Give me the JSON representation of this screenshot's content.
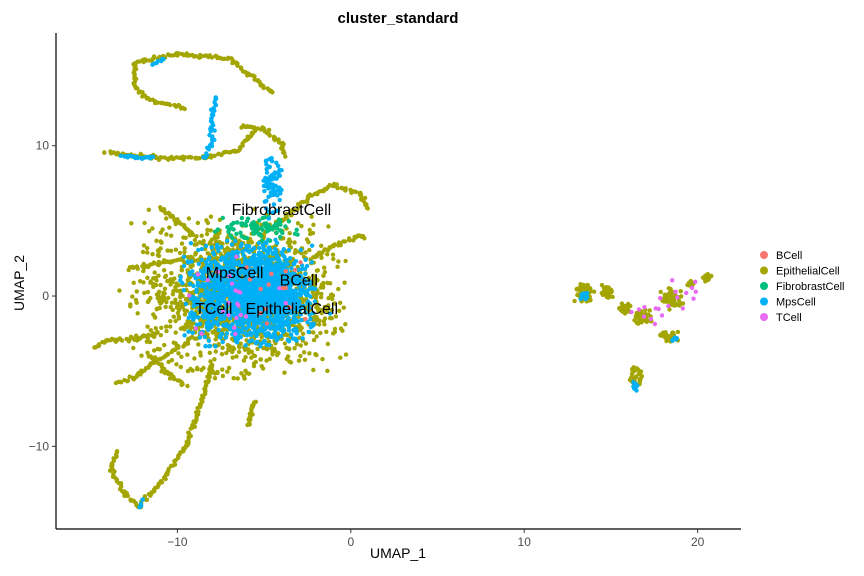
{
  "chart_data": {
    "type": "scatter",
    "title": "cluster_standard",
    "xlabel": "UMAP_1",
    "ylabel": "UMAP_2",
    "xlim": [
      -17,
      22.5
    ],
    "ylim": [
      -15.5,
      17.5
    ],
    "x_ticks": [
      -10,
      0,
      10,
      20
    ],
    "y_ticks": [
      -10,
      0,
      10
    ],
    "x_tick_labels": [
      "−10",
      "0",
      "10",
      "20"
    ],
    "y_tick_labels": [
      "−10",
      "0",
      "10"
    ],
    "grid": false,
    "legend_position": "right",
    "series": [
      {
        "name": "BCell",
        "color": "#F8766D"
      },
      {
        "name": "EpithelialCell",
        "color": "#A3A500"
      },
      {
        "name": "FibrobrastCell",
        "color": "#00BF7D"
      },
      {
        "name": "MpsCell",
        "color": "#00B0F6"
      },
      {
        "name": "TCell",
        "color": "#E76BF3"
      }
    ],
    "cluster_labels": [
      {
        "text": "FibrobrastCell",
        "x": -4,
        "y": 5.4
      },
      {
        "text": "MpsCell",
        "x": -6.7,
        "y": 1.2
      },
      {
        "text": "BCell",
        "x": -3,
        "y": 0.7
      },
      {
        "text": "TCell",
        "x": -7.9,
        "y": -1.2
      },
      {
        "text": "EpithelialCell",
        "x": -3.4,
        "y": -1.2
      }
    ],
    "point_clouds": [
      {
        "series": "EpithelialCell",
        "cx": -6.5,
        "cy": 0,
        "sx": 2.6,
        "sy": 2.3,
        "n": 1600
      },
      {
        "series": "MpsCell",
        "cx": -6.0,
        "cy": 0.2,
        "sx": 1.6,
        "sy": 1.5,
        "n": 1300
      },
      {
        "series": "MpsCell",
        "cx": -4.2,
        "cy": 0.0,
        "sx": 0.9,
        "sy": 1.3,
        "n": 400
      },
      {
        "series": "FibrobrastCell",
        "cx": -5.6,
        "cy": 4.5,
        "sx": 1.2,
        "sy": 0.35,
        "n": 90
      },
      {
        "series": "MpsCell",
        "cx": -4.6,
        "cy": 7.3,
        "sx": 0.3,
        "sy": 0.9,
        "n": 80
      },
      {
        "series": "TCell",
        "cx": -6.5,
        "cy": -0.3,
        "sx": 1.3,
        "sy": 1.3,
        "n": 25
      },
      {
        "series": "BCell",
        "cx": -4.5,
        "cy": 0.5,
        "sx": 1.0,
        "sy": 1.0,
        "n": 15
      },
      {
        "series": "EpithelialCell",
        "cx": 13.5,
        "cy": 0.2,
        "sx": 0.25,
        "sy": 0.3,
        "n": 90
      },
      {
        "series": "EpithelialCell",
        "cx": 14.8,
        "cy": 0.3,
        "sx": 0.15,
        "sy": 0.2,
        "n": 40
      },
      {
        "series": "EpithelialCell",
        "cx": 15.8,
        "cy": -0.8,
        "sx": 0.15,
        "sy": 0.15,
        "n": 30
      },
      {
        "series": "EpithelialCell",
        "cx": 16.9,
        "cy": -1.4,
        "sx": 0.25,
        "sy": 0.25,
        "n": 50
      },
      {
        "series": "EpithelialCell",
        "cx": 18.5,
        "cy": -0.2,
        "sx": 0.3,
        "sy": 0.3,
        "n": 60
      },
      {
        "series": "EpithelialCell",
        "cx": 19.6,
        "cy": 0.8,
        "sx": 0.12,
        "sy": 0.15,
        "n": 20
      },
      {
        "series": "EpithelialCell",
        "cx": 20.6,
        "cy": 1.2,
        "sx": 0.12,
        "sy": 0.12,
        "n": 20
      },
      {
        "series": "EpithelialCell",
        "cx": 18.4,
        "cy": -2.7,
        "sx": 0.25,
        "sy": 0.15,
        "n": 30
      },
      {
        "series": "EpithelialCell",
        "cx": 16.4,
        "cy": -5.3,
        "sx": 0.2,
        "sy": 0.35,
        "n": 30
      },
      {
        "series": "MpsCell",
        "cx": 16.4,
        "cy": -6.0,
        "sx": 0.1,
        "sy": 0.15,
        "n": 8
      },
      {
        "series": "MpsCell",
        "cx": 18.7,
        "cy": -2.9,
        "sx": 0.1,
        "sy": 0.1,
        "n": 6
      },
      {
        "series": "MpsCell",
        "cx": 13.4,
        "cy": 0.1,
        "sx": 0.15,
        "sy": 0.15,
        "n": 10
      },
      {
        "series": "TCell",
        "cx": 17.5,
        "cy": -1.0,
        "sx": 0.8,
        "sy": 0.5,
        "n": 12
      },
      {
        "series": "TCell",
        "cx": 19.2,
        "cy": 0.3,
        "sx": 0.6,
        "sy": 0.4,
        "n": 8
      }
    ],
    "point_trails": [
      {
        "series": "EpithelialCell",
        "points": [
          [
            -4.5,
            13.5
          ],
          [
            -7,
            15.8
          ],
          [
            -10,
            16.1
          ],
          [
            -12.5,
            15.5
          ],
          [
            -12.4,
            13.8
          ],
          [
            -11.5,
            13.0
          ],
          [
            -9.6,
            12.5
          ]
        ]
      },
      {
        "series": "EpithelialCell",
        "points": [
          [
            -5.6,
            11.0
          ],
          [
            -6.5,
            9.7
          ],
          [
            -8.5,
            9.2
          ],
          [
            -11,
            9.2
          ],
          [
            -13,
            9.4
          ],
          [
            -14.2,
            9.6
          ]
        ]
      },
      {
        "series": "EpithelialCell",
        "points": [
          [
            -6.4,
            11.3
          ],
          [
            -5.0,
            11.1
          ],
          [
            -4.0,
            10.2
          ],
          [
            -3.8,
            9.3
          ]
        ]
      },
      {
        "series": "EpithelialCell",
        "points": [
          [
            -9,
            2.5
          ],
          [
            -10.5,
            2.3
          ],
          [
            -12,
            2.0
          ],
          [
            -12.8,
            1.8
          ]
        ]
      },
      {
        "series": "EpithelialCell",
        "points": [
          [
            -11,
            -2.5
          ],
          [
            -12.5,
            -2.8
          ],
          [
            -14,
            -3.0
          ],
          [
            -14.8,
            -3.4
          ]
        ]
      },
      {
        "series": "EpithelialCell",
        "points": [
          [
            -10,
            -3.5
          ],
          [
            -11.5,
            -4.5
          ],
          [
            -12.5,
            -5.5
          ],
          [
            -13.5,
            -5.8
          ]
        ]
      },
      {
        "series": "EpithelialCell",
        "points": [
          [
            -8,
            -4.5
          ],
          [
            -8.6,
            -7
          ],
          [
            -9.5,
            -10
          ],
          [
            -11,
            -12.5
          ],
          [
            -12.2,
            -14.0
          ],
          [
            -13,
            -13.2
          ],
          [
            -13.8,
            -11.5
          ],
          [
            -13.5,
            -10.3
          ]
        ]
      },
      {
        "series": "EpithelialCell",
        "points": [
          [
            -4,
            5
          ],
          [
            -2.5,
            6.5
          ],
          [
            -1,
            7.4
          ],
          [
            0.5,
            6.8
          ],
          [
            1,
            5.8
          ]
        ]
      },
      {
        "series": "EpithelialCell",
        "points": [
          [
            -2.3,
            2.5
          ],
          [
            -1,
            3.3
          ],
          [
            0.5,
            4.0
          ],
          [
            0.8,
            3.9
          ]
        ]
      },
      {
        "series": "EpithelialCell",
        "points": [
          [
            -9,
            4
          ],
          [
            -10.5,
            5.5
          ],
          [
            -11,
            5.9
          ]
        ]
      },
      {
        "series": "EpithelialCell",
        "points": [
          [
            -5.6,
            -7
          ],
          [
            -5.9,
            -8.6
          ]
        ]
      },
      {
        "series": "EpithelialCell",
        "points": [
          [
            -11.5,
            -4.0
          ],
          [
            -10.5,
            -5.2
          ],
          [
            -9.5,
            -6.0
          ]
        ]
      },
      {
        "series": "MpsCell",
        "points": [
          [
            -7.8,
            13.2
          ],
          [
            -8.0,
            12.0
          ],
          [
            -8.0,
            10.0
          ],
          [
            -8.5,
            9.2
          ]
        ]
      },
      {
        "series": "MpsCell",
        "points": [
          [
            -13.2,
            9.4
          ],
          [
            -12.5,
            9.2
          ],
          [
            -11.4,
            9.2
          ]
        ]
      },
      {
        "series": "MpsCell",
        "points": [
          [
            -11.4,
            15.4
          ],
          [
            -10.8,
            15.8
          ]
        ]
      },
      {
        "series": "MpsCell",
        "points": [
          [
            -12.2,
            -14.0
          ],
          [
            -12.0,
            -13.6
          ]
        ]
      }
    ]
  }
}
